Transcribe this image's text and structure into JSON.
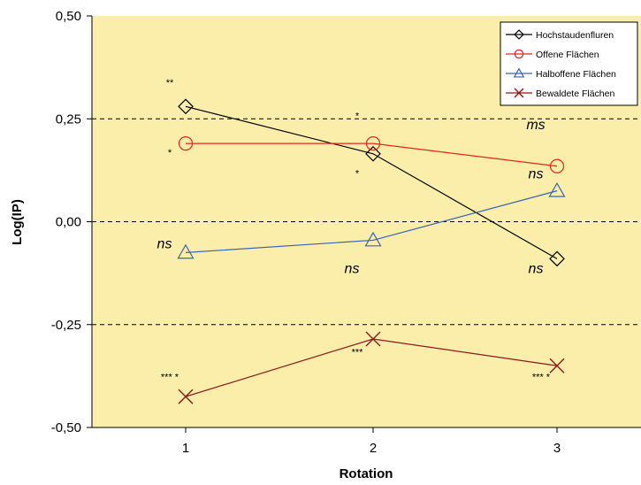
{
  "chart_data": {
    "type": "line",
    "xlabel": "Rotation",
    "ylabel": "Log(IP)",
    "categories": [
      "1",
      "2",
      "3"
    ],
    "ylim": [
      -0.5,
      0.5
    ],
    "yticks": [
      "-0,50",
      "-0,25",
      "0,00",
      "0,25",
      "0,50"
    ],
    "ytick_values": [
      -0.5,
      -0.25,
      0,
      0.25,
      0.5
    ],
    "grid": "dashed at -0,25, 0,00 and 0,25",
    "legend_position": "top-right",
    "background_color": "#fbeeaa",
    "series": [
      {
        "name": "Hochstaudenfluren",
        "marker": "diamond",
        "color": "#000000",
        "values": [
          0.28,
          0.165,
          -0.09
        ]
      },
      {
        "name": "Offene Flächen",
        "marker": "circle",
        "color": "#e3261b",
        "values": [
          0.19,
          0.19,
          0.135
        ]
      },
      {
        "name": "Halboffene Flächen",
        "marker": "triangle",
        "color": "#3a64b4",
        "values": [
          -0.075,
          -0.045,
          0.075
        ]
      },
      {
        "name": "Bewaldete Flächen",
        "marker": "x",
        "color": "#8b1a1a",
        "values": [
          -0.425,
          -0.285,
          -0.35
        ]
      }
    ],
    "annotations": [
      {
        "text": "**",
        "x": 1,
        "y": 0.33,
        "style": "small"
      },
      {
        "text": "*",
        "x": 1,
        "y": 0.16,
        "style": "small"
      },
      {
        "text": "*",
        "x": 2,
        "y": 0.25,
        "style": "small"
      },
      {
        "text": "*",
        "x": 2,
        "y": 0.11,
        "style": "small"
      },
      {
        "text": "ms",
        "x": 3,
        "y": 0.225,
        "style": "italic"
      },
      {
        "text": "ns",
        "x": 3,
        "y": 0.105,
        "style": "italic"
      },
      {
        "text": "ns",
        "x": 1,
        "y": -0.065,
        "style": "italic"
      },
      {
        "text": "ns",
        "x": 2,
        "y": -0.125,
        "style": "italic"
      },
      {
        "text": "ns",
        "x": 3,
        "y": -0.125,
        "style": "italic"
      },
      {
        "text": "*** *",
        "x": 1,
        "y": -0.385,
        "style": "small"
      },
      {
        "text": "***",
        "x": 2,
        "y": -0.325,
        "style": "small"
      },
      {
        "text": "*** *",
        "x": 3,
        "y": -0.385,
        "style": "small"
      }
    ]
  }
}
